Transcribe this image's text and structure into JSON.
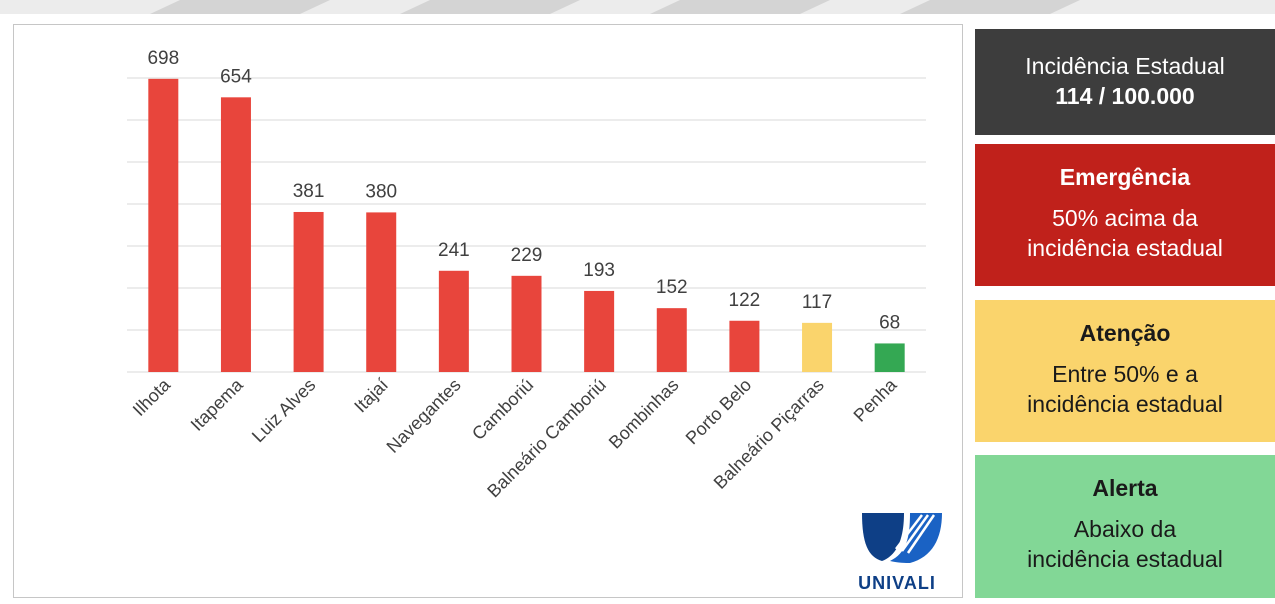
{
  "chart_data": {
    "type": "bar",
    "categories": [
      "Ilhota",
      "Itapema",
      "Luiz Alves",
      "Itajaí",
      "Navegantes",
      "Camboriú",
      "Balneário Camboriú",
      "Bombinhas",
      "Porto Belo",
      "Balneário Piçarras",
      "Penha"
    ],
    "values": [
      698,
      654,
      381,
      380,
      241,
      229,
      193,
      152,
      122,
      117,
      68
    ],
    "bar_colors": [
      "#e8453c",
      "#e8453c",
      "#e8453c",
      "#e8453c",
      "#e8453c",
      "#e8453c",
      "#e8453c",
      "#e8453c",
      "#e8453c",
      "#fad46c",
      "#34a853"
    ],
    "ylim": [
      0,
      700
    ],
    "y_grid_step": 100,
    "grid": true,
    "legend": "right"
  },
  "legend_boxes": {
    "state": {
      "title": "Incidência Estadual",
      "value": "114 / 100.000",
      "color": "#3d3d3d"
    },
    "emergency": {
      "title": "Emergência",
      "line1": "50% acima da",
      "line2": "incidência estadual",
      "color": "#c0211b"
    },
    "attention": {
      "title": "Atenção",
      "line1": "Entre 50% e a",
      "line2": "incidência estadual",
      "color": "#fad46c"
    },
    "alert": {
      "title": "Alerta",
      "line1": "Abaixo da",
      "line2": "incidência estadual",
      "color": "#82d796"
    }
  },
  "logo": {
    "text": "UNIVALI"
  }
}
